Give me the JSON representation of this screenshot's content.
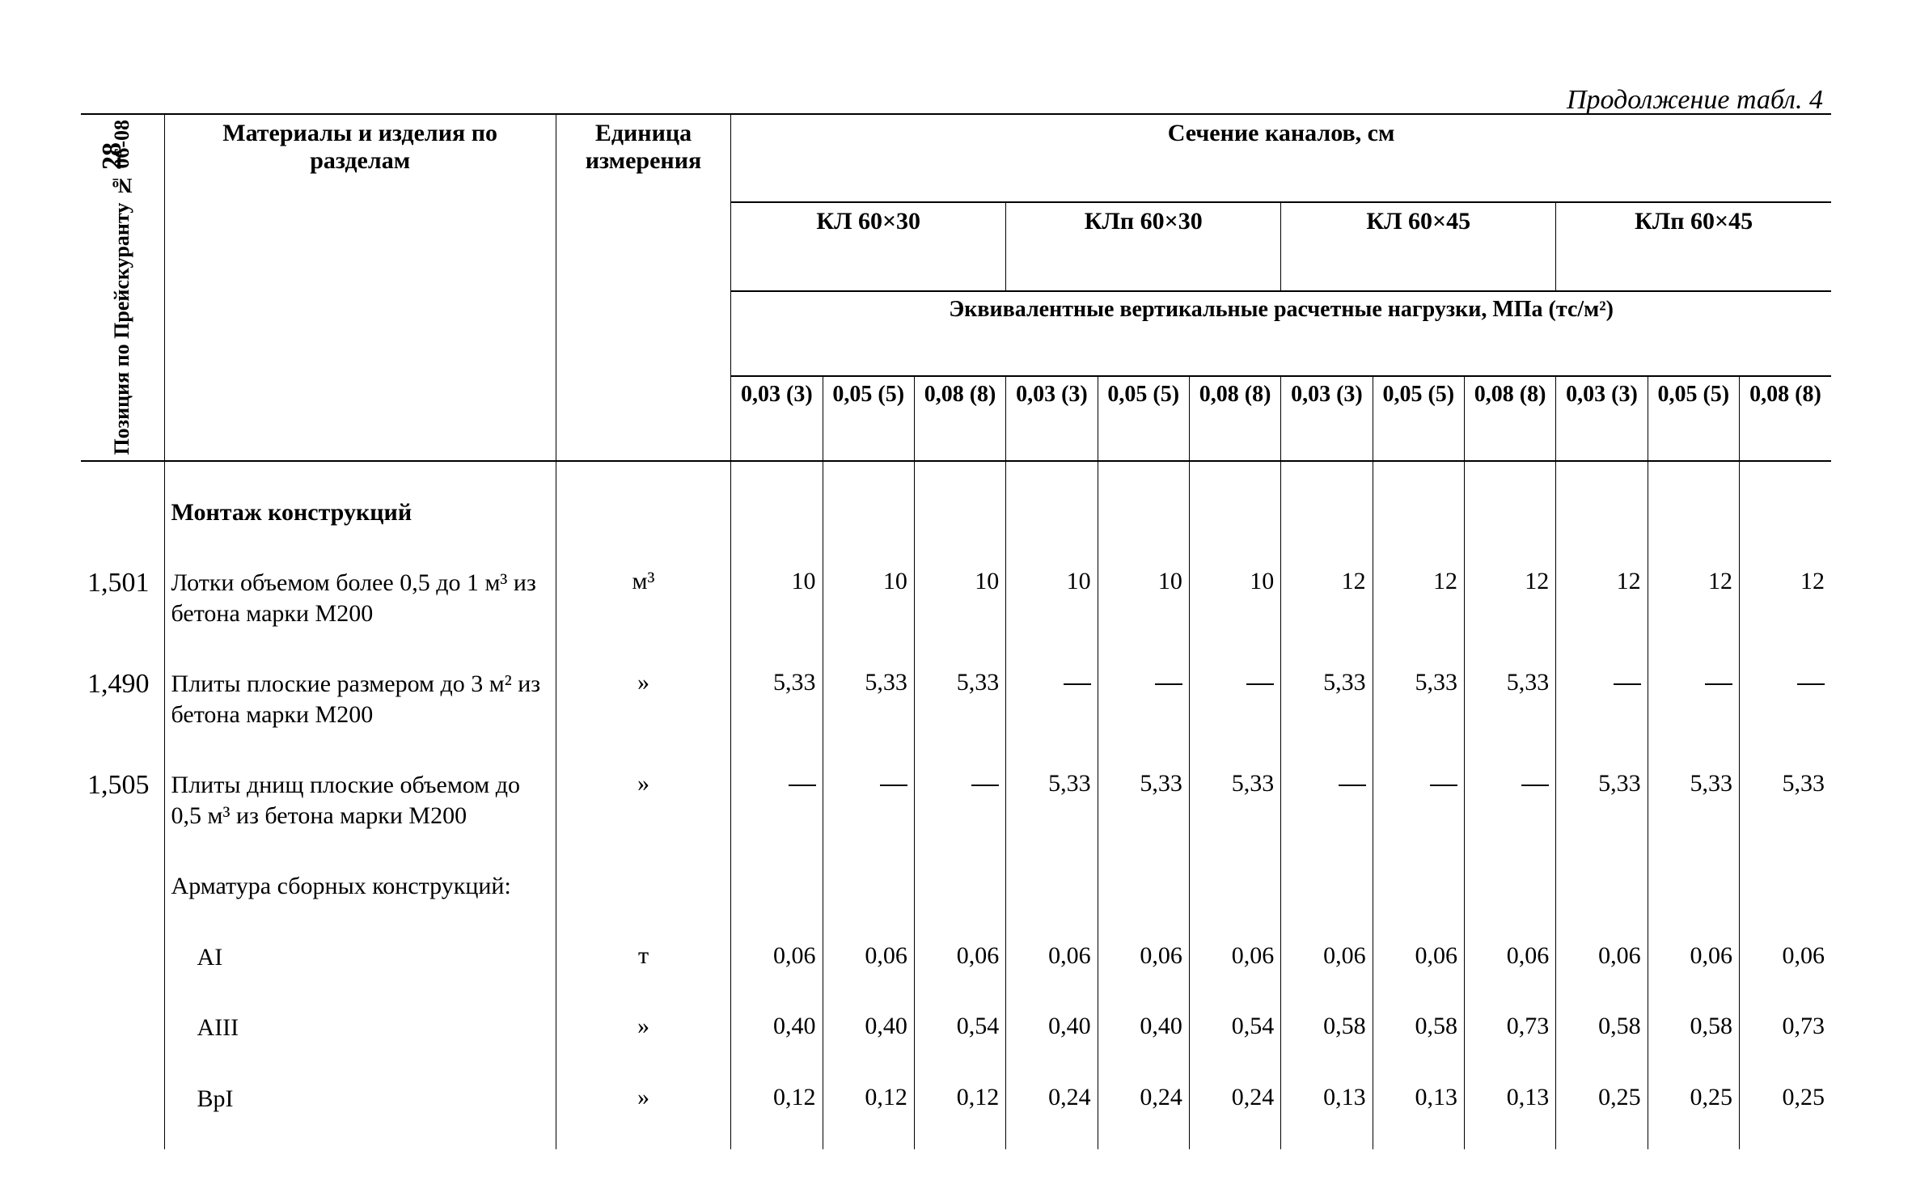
{
  "page_number": "28",
  "caption": "Продолжение табл. 4",
  "headers": {
    "pos": "Позиция по Прейскуранту № 06-08",
    "mat": "Материалы и изделия по разделам",
    "unit": "Единица измерения",
    "section_top": "Сечение каналов, см",
    "groups": [
      "КЛ 60×30",
      "КЛп 60×30",
      "КЛ 60×45",
      "КЛп 60×45"
    ],
    "equiv": "Эквивалентные вертикальные расчетные нагрузки, МПа (тс/м²)",
    "sub": [
      "0,03 (3)",
      "0,05 (5)",
      "0,08 (8)"
    ]
  },
  "section_title": "Монтаж конструкций",
  "rows": [
    {
      "pos": "1,501",
      "mat": "Лотки объемом более 0,5 до 1 м³ из бетона марки М200",
      "unit": "м³",
      "vals": [
        "10",
        "10",
        "10",
        "10",
        "10",
        "10",
        "12",
        "12",
        "12",
        "12",
        "12",
        "12"
      ]
    },
    {
      "pos": "1,490",
      "mat": "Плиты плоские размером до 3 м² из бетона марки М200",
      "unit": "»",
      "vals": [
        "5,33",
        "5,33",
        "5,33",
        "—",
        "—",
        "—",
        "5,33",
        "5,33",
        "5,33",
        "—",
        "—",
        "—"
      ]
    },
    {
      "pos": "1,505",
      "mat": "Плиты днищ плоские объемом до 0,5 м³ из бетона марки М200",
      "unit": "»",
      "vals": [
        "—",
        "—",
        "—",
        "5,33",
        "5,33",
        "5,33",
        "—",
        "—",
        "—",
        "5,33",
        "5,33",
        "5,33"
      ]
    }
  ],
  "armature_title": "Арматура сборных конструкций:",
  "armature_rows": [
    {
      "mat": "AI",
      "unit": "т",
      "vals": [
        "0,06",
        "0,06",
        "0,06",
        "0,06",
        "0,06",
        "0,06",
        "0,06",
        "0,06",
        "0,06",
        "0,06",
        "0,06",
        "0,06"
      ]
    },
    {
      "mat": "AIII",
      "unit": "»",
      "vals": [
        "0,40",
        "0,40",
        "0,54",
        "0,40",
        "0,40",
        "0,54",
        "0,58",
        "0,58",
        "0,73",
        "0,58",
        "0,58",
        "0,73"
      ]
    },
    {
      "mat": "BpI",
      "unit": "»",
      "vals": [
        "0,12",
        "0,12",
        "0,12",
        "0,24",
        "0,24",
        "0,24",
        "0,13",
        "0,13",
        "0,13",
        "0,25",
        "0,25",
        "0,25"
      ]
    }
  ]
}
